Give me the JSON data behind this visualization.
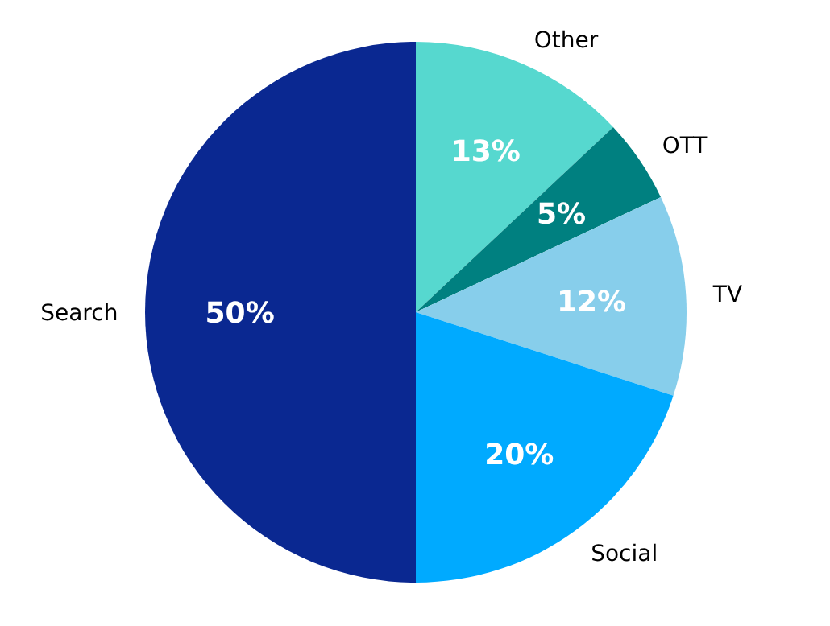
{
  "chart_data": {
    "type": "pie",
    "categories": [
      "Other",
      "OTT",
      "TV",
      "Social",
      "Search"
    ],
    "values": [
      13,
      5,
      12,
      20,
      50
    ],
    "colors": [
      "#56d8cf",
      "#008080",
      "#87ceeb",
      "#00aaff",
      "#0a2891"
    ],
    "value_labels": [
      "13%",
      "5%",
      "12%",
      "20%",
      "50%"
    ]
  }
}
